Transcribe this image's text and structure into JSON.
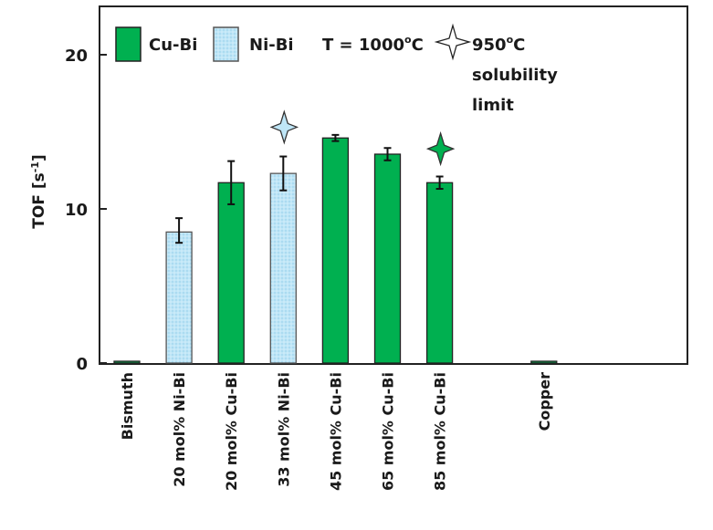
{
  "chart_data": {
    "type": "bar",
    "title": "",
    "xlabel": "",
    "ylabel": "TOF [s",
    "ylabel_sup": "-1",
    "ylabel_end": "]",
    "ylim": [
      0,
      23.5
    ],
    "yticks": [
      "0",
      "10",
      "20"
    ],
    "ytick_values": [
      0,
      10,
      20
    ],
    "grid": false,
    "legend_placement": "top",
    "colors": {
      "Cu-Bi": "#00b050",
      "Ni-Bi": "#bfe6f7"
    },
    "categories": [
      "Bismuth",
      "20 mol% Ni-Bi",
      "20 mol% Cu-Bi",
      "33 mol% Ni-Bi",
      "45 mol% Cu-Bi",
      "65 mol% Cu-Bi",
      "85 mol% Cu-Bi",
      "",
      "Copper"
    ],
    "bars": [
      {
        "category": "Bismuth",
        "value": 0.1,
        "type": "Cu-Bi",
        "err_low": null,
        "err_high": null
      },
      {
        "category": "20 mol% Ni-Bi",
        "value": 8.5,
        "type": "Ni-Bi",
        "err_low": 7.8,
        "err_high": 9.4
      },
      {
        "category": "20 mol% Cu-Bi",
        "value": 11.7,
        "type": "Cu-Bi",
        "err_low": 10.3,
        "err_high": 13.1
      },
      {
        "category": "33 mol% Ni-Bi",
        "value": 12.3,
        "type": "Ni-Bi",
        "err_low": 11.2,
        "err_high": 13.4
      },
      {
        "category": "45 mol% Cu-Bi",
        "value": 14.6,
        "type": "Cu-Bi",
        "err_low": 14.4,
        "err_high": 14.8
      },
      {
        "category": "65 mol% Cu-Bi",
        "value": 13.55,
        "type": "Cu-Bi",
        "err_low": 13.15,
        "err_high": 13.95
      },
      {
        "category": "85 mol% Cu-Bi",
        "value": 11.7,
        "type": "Cu-Bi",
        "err_low": 11.3,
        "err_high": 12.1
      },
      {
        "category": "",
        "value": null,
        "type": null,
        "err_low": null,
        "err_high": null
      },
      {
        "category": "Copper",
        "value": 0.05,
        "type": "Cu-Bi",
        "err_low": null,
        "err_high": null
      }
    ],
    "solubility_markers": [
      {
        "category": "33 mol% Ni-Bi",
        "type": "Ni-Bi",
        "value": 15.3
      },
      {
        "category": "85 mol% Cu-Bi",
        "type": "Cu-Bi",
        "value": 13.9
      }
    ],
    "legend": {
      "cu_bi": "Cu-Bi",
      "ni_bi": "Ni-Bi",
      "temperature": "T = 1000",
      "temperature_sup": "o",
      "temperature_unit": "C",
      "star_line1": "950",
      "star_line1_sup": "o",
      "star_line1_unit": "C",
      "star_line2": "solubility",
      "star_line3": "limit"
    }
  }
}
